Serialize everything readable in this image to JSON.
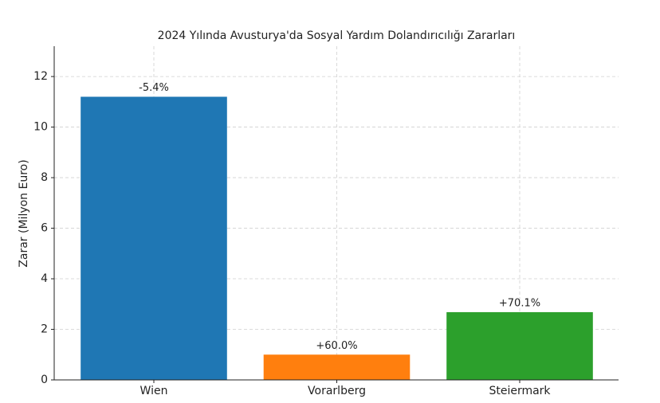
{
  "chart_data": {
    "type": "bar",
    "title": "2024 Yılında Avusturya'da Sosyal Yardım Dolandırıcılığı Zararları",
    "y_label": "Zarar (Milyon Euro)",
    "categories": [
      "Wien",
      "Vorarlberg",
      "Steiermark"
    ],
    "values": [
      11.2,
      1.0,
      2.68
    ],
    "colors": [
      "#1f77b4",
      "#ff7f0e",
      "#2ca02c"
    ],
    "annotations": [
      "-5.4%",
      "+60.0%",
      "+70.1%"
    ],
    "ylim": [
      0,
      13.2
    ],
    "yticks": [
      0,
      2,
      4,
      6,
      8,
      10,
      12
    ],
    "grid": true
  }
}
